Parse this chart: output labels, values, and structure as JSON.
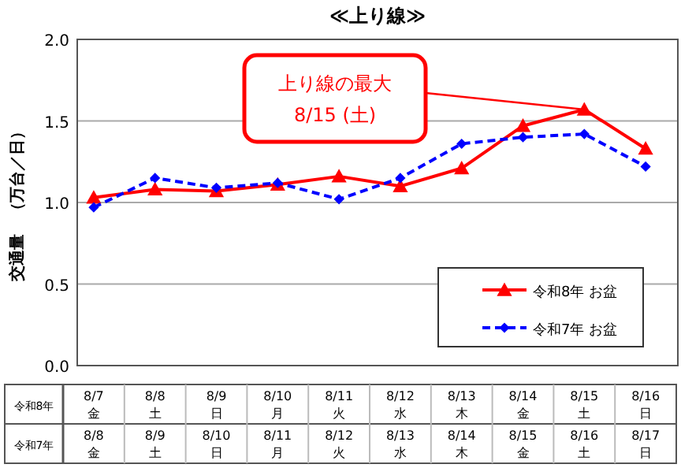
{
  "chart_data": {
    "type": "line",
    "title": "≪上り線≫",
    "ylabel": "交通量　（万台／日）",
    "categories": [
      "8/7 金",
      "8/8 土",
      "8/9 日",
      "8/10 月",
      "8/11 火",
      "8/12 水",
      "8/13 木",
      "8/14 金",
      "8/15 土",
      "8/16 日"
    ],
    "series": [
      {
        "name": "令和8年 お盆",
        "color": "#ff0000",
        "marker": "triangle",
        "line_style": "solid",
        "values": [
          1.03,
          1.08,
          1.07,
          1.11,
          1.16,
          1.1,
          1.21,
          1.47,
          1.57,
          1.33
        ]
      },
      {
        "name": "令和7年 お盆",
        "color": "#0000ff",
        "marker": "diamond",
        "line_style": "dashed",
        "values": [
          0.97,
          1.15,
          1.09,
          1.12,
          1.02,
          1.15,
          1.36,
          1.4,
          1.42,
          1.22
        ]
      }
    ],
    "ylim": [
      0,
      2
    ],
    "yticks": [
      {
        "value": 0,
        "label": "0.0"
      },
      {
        "value": 0.5,
        "label": "0.5"
      },
      {
        "value": 1,
        "label": "1.0"
      },
      {
        "value": 1.5,
        "label": "1.5"
      },
      {
        "value": 2,
        "label": "2.0"
      }
    ],
    "grid": "y",
    "legend": "bottom right",
    "annotations": [
      "上り線の最大\n8/15 (土)",
      "令和8年",
      "令和7年",
      "8/8 金",
      "8/9 土",
      "8/10 日",
      "8/11 月",
      "8/12 火",
      "8/13 水",
      "8/14 木",
      "8/15 金",
      "8/16 土",
      "8/17 日"
    ]
  }
}
